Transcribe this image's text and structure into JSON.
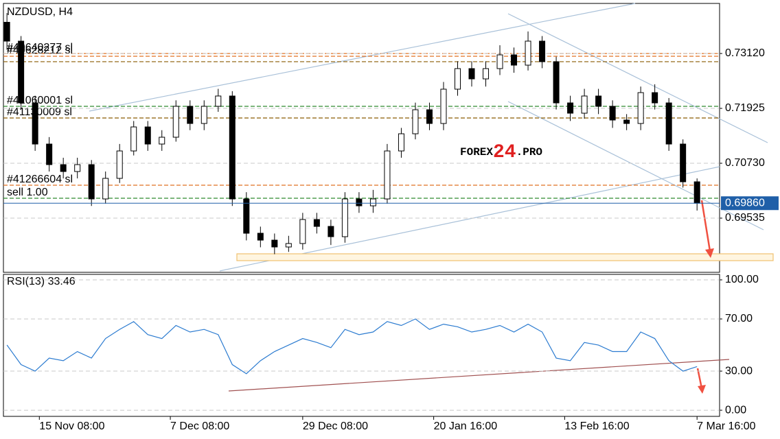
{
  "chart_data": [
    {
      "type": "candlestick",
      "title": "NZDUSD, H4",
      "open": [
        0.738,
        0.73389,
        0.72044,
        0.71148,
        0.707,
        0.7055,
        0.707,
        0.69953,
        0.70401,
        0.70998,
        0.71521,
        0.71148,
        0.71297,
        0.7197,
        0.71596,
        0.7197,
        0.72194,
        0.69953,
        0.69206,
        0.69056,
        0.68907,
        0.68982,
        0.69505,
        0.69355,
        0.69131,
        0.69953,
        0.69803,
        0.69953,
        0.70998,
        0.71372,
        0.71895,
        0.71596,
        0.72343,
        0.72791,
        0.72567,
        0.72791,
        0.7309,
        0.72866,
        0.73389,
        0.72941,
        0.72044,
        0.7182,
        0.72194,
        0.7197,
        0.71671,
        0.71596,
        0.72268,
        0.72044,
        0.71148,
        0.70326
      ],
      "high": [
        0.74,
        0.735,
        0.722,
        0.713,
        0.7085,
        0.7085,
        0.708,
        0.7055,
        0.7115,
        0.7165,
        0.7165,
        0.7145,
        0.721,
        0.721,
        0.721,
        0.7235,
        0.723,
        0.701,
        0.6935,
        0.692,
        0.6915,
        0.6965,
        0.6965,
        0.695,
        0.701,
        0.701,
        0.7015,
        0.7115,
        0.715,
        0.7205,
        0.7205,
        0.725,
        0.7295,
        0.7295,
        0.7295,
        0.733,
        0.7325,
        0.736,
        0.735,
        0.7305,
        0.722,
        0.7235,
        0.7235,
        0.721,
        0.718,
        0.724,
        0.7245,
        0.7215,
        0.7125,
        0.704
      ],
      "low": [
        0.732,
        0.719,
        0.71,
        0.7055,
        0.704,
        0.704,
        0.698,
        0.6985,
        0.703,
        0.709,
        0.71,
        0.71,
        0.712,
        0.7145,
        0.7145,
        0.7185,
        0.698,
        0.6905,
        0.689,
        0.6875,
        0.688,
        0.6885,
        0.692,
        0.6895,
        0.69,
        0.6965,
        0.6965,
        0.6985,
        0.7085,
        0.7125,
        0.7145,
        0.7145,
        0.722,
        0.724,
        0.724,
        0.7265,
        0.727,
        0.7275,
        0.728,
        0.719,
        0.7165,
        0.717,
        0.718,
        0.715,
        0.7145,
        0.7145,
        0.719,
        0.71,
        0.702,
        0.697
      ],
      "close": [
        0.73389,
        0.72044,
        0.71148,
        0.707,
        0.7055,
        0.707,
        0.69953,
        0.70401,
        0.70998,
        0.71521,
        0.71148,
        0.71297,
        0.7197,
        0.71596,
        0.7197,
        0.72194,
        0.69953,
        0.69206,
        0.69056,
        0.68907,
        0.68982,
        0.69505,
        0.69355,
        0.69131,
        0.69953,
        0.69803,
        0.69953,
        0.70998,
        0.71372,
        0.71895,
        0.71596,
        0.72343,
        0.72791,
        0.72567,
        0.72791,
        0.7309,
        0.72866,
        0.73389,
        0.72941,
        0.72044,
        0.7182,
        0.72194,
        0.7197,
        0.71671,
        0.71596,
        0.72268,
        0.72044,
        0.71148,
        0.70326,
        0.6986
      ],
      "xlim": [
        -0.25,
        50.6
      ],
      "xticks": [
        {
          "value": 2.3,
          "label": "15 Nov 08:00"
        },
        {
          "value": 11.6,
          "label": "7 Dec 08:00"
        },
        {
          "value": 21,
          "label": "29 Dec 08:00"
        },
        {
          "value": 30.3,
          "label": "20 Jan 16:00"
        },
        {
          "value": 39.6,
          "label": "13 Feb 16:00"
        },
        {
          "value": 49,
          "label": "7 Mar 16:00"
        }
      ],
      "ylim": [
        0.68355,
        0.7421
      ],
      "yticks": [
        {
          "value": 0.7312,
          "label": "0.73120"
        },
        {
          "value": 0.71925,
          "label": "0.71925"
        },
        {
          "value": 0.7073,
          "label": "0.70730"
        },
        {
          "value": 0.69535,
          "label": "0.69535"
        }
      ],
      "grid": true,
      "levels": [
        {
          "price": 0.7312,
          "color": "#e07020",
          "label": "#40640277 sl"
        },
        {
          "price": 0.7306,
          "color": "#e07020",
          "label": "#40628212 sl"
        },
        {
          "price": 0.72941,
          "color": "#8b5a00"
        },
        {
          "price": 0.7197,
          "color": "#2e8b2e",
          "label": "#41060001 sl"
        },
        {
          "price": 0.71716,
          "color": "#8b5a00",
          "label": "#41130009 sl"
        },
        {
          "price": 0.70252,
          "color": "#e07020",
          "label": "#41266604 sl"
        },
        {
          "price": 0.69968,
          "color": "#2e8b2e",
          "label": "sell 1.00"
        }
      ],
      "last": {
        "value": 0.6986,
        "label": "0.69860",
        "color": "#1f5fa8"
      },
      "watermark": [
        "FOREX",
        "24",
        ".PRO"
      ]
    },
    {
      "type": "line",
      "title": "RSI(13) 33.46",
      "color": "#2b7bd0",
      "values": [
        50,
        35,
        30,
        40,
        38,
        45,
        40,
        55,
        62,
        68,
        58,
        55,
        65,
        60,
        62,
        58,
        35,
        28,
        38,
        45,
        50,
        55,
        52,
        48,
        62,
        58,
        60,
        68,
        65,
        70,
        62,
        66,
        64,
        60,
        62,
        65,
        60,
        66,
        60,
        40,
        38,
        52,
        50,
        45,
        45,
        60,
        55,
        38,
        30,
        33.46
      ],
      "ylim": [
        -4.7,
        104.2
      ],
      "yticks": [
        {
          "value": 100,
          "label": "100.00"
        },
        {
          "value": 70,
          "label": "70.00"
        },
        {
          "value": 30,
          "label": "30.00"
        },
        {
          "value": 0,
          "label": "0.00"
        }
      ],
      "grid": true
    }
  ]
}
